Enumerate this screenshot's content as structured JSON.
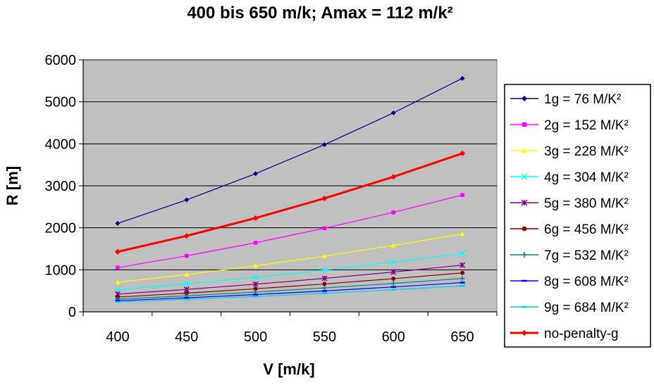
{
  "chart_data": {
    "type": "line",
    "title": "400 bis 650 m/k; Amax = 112 m/k²",
    "xlabel": "V [m/k]",
    "ylabel": "R [m]",
    "x": [
      400,
      450,
      500,
      550,
      600,
      650
    ],
    "ylim": [
      0,
      6000
    ],
    "yticks": [
      0,
      1000,
      2000,
      3000,
      4000,
      5000,
      6000
    ],
    "grid": "horizontal",
    "plot_background": "#c0c0c0",
    "legend_position": "right",
    "series": [
      {
        "name": "1g = 76 M/K²",
        "color": "#000080",
        "marker": "diamond",
        "values": [
          2105,
          2664,
          3289,
          3980,
          4737,
          5559
        ]
      },
      {
        "name": "2g = 152 M/K²",
        "color": "#ff00ff",
        "marker": "square",
        "values": [
          1053,
          1332,
          1645,
          1990,
          2368,
          2780
        ]
      },
      {
        "name": "3g = 228 M/K²",
        "color": "#ffff00",
        "marker": "triangle",
        "values": [
          702,
          888,
          1096,
          1327,
          1579,
          1853
        ]
      },
      {
        "name": "4g = 304 M/K²",
        "color": "#00ffff",
        "marker": "x",
        "values": [
          526,
          666,
          822,
          995,
          1184,
          1390
        ]
      },
      {
        "name": "5g = 380 M/K²",
        "color": "#800080",
        "marker": "star",
        "values": [
          421,
          533,
          658,
          796,
          947,
          1112
        ]
      },
      {
        "name": "6g = 456 M/K²",
        "color": "#800000",
        "marker": "circle",
        "values": [
          351,
          444,
          548,
          663,
          789,
          927
        ]
      },
      {
        "name": "7g = 532 M/K²",
        "color": "#008080",
        "marker": "plus",
        "values": [
          301,
          381,
          470,
          569,
          677,
          794
        ]
      },
      {
        "name": "8g = 608 M/K²",
        "color": "#0000ff",
        "marker": "dash",
        "values": [
          263,
          333,
          411,
          497,
          592,
          695
        ]
      },
      {
        "name": "9g = 684 M/K²",
        "color": "#00ccff",
        "marker": "dash",
        "values": [
          234,
          296,
          365,
          442,
          526,
          618
        ]
      },
      {
        "name": "no-penalty-g",
        "color": "#ff0000",
        "marker": "diamond",
        "values": [
          1429,
          1808,
          2232,
          2701,
          3214,
          3772
        ],
        "bold": true
      }
    ]
  }
}
